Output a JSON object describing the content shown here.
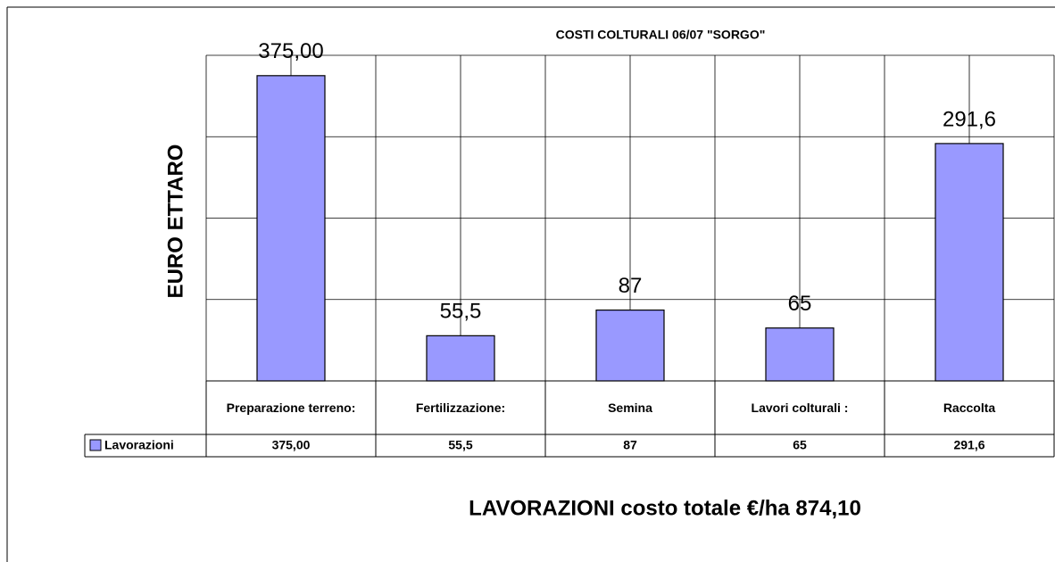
{
  "chart_data": {
    "type": "bar",
    "title": "COSTI COLTURALI 06/07 \"SORGO\"",
    "ylabel": "EURO ETTARO",
    "categories": [
      "Preparazione terreno:",
      "Fertilizzazione:",
      "Semina",
      "Lavori colturali :",
      "Raccolta"
    ],
    "series": [
      {
        "name": "Lavorazioni",
        "color": "#9999ff",
        "values": [
          375,
          55.5,
          87,
          65,
          291.6
        ],
        "value_labels": [
          "375,00",
          "55,5",
          "87",
          "65",
          "291,6"
        ]
      }
    ],
    "ylim": [
      0,
      400
    ],
    "yticks": [
      0,
      100,
      200,
      300,
      400
    ],
    "grid": true,
    "annotation": "LAVORAZIONI costo totale €/ha 874,10"
  }
}
